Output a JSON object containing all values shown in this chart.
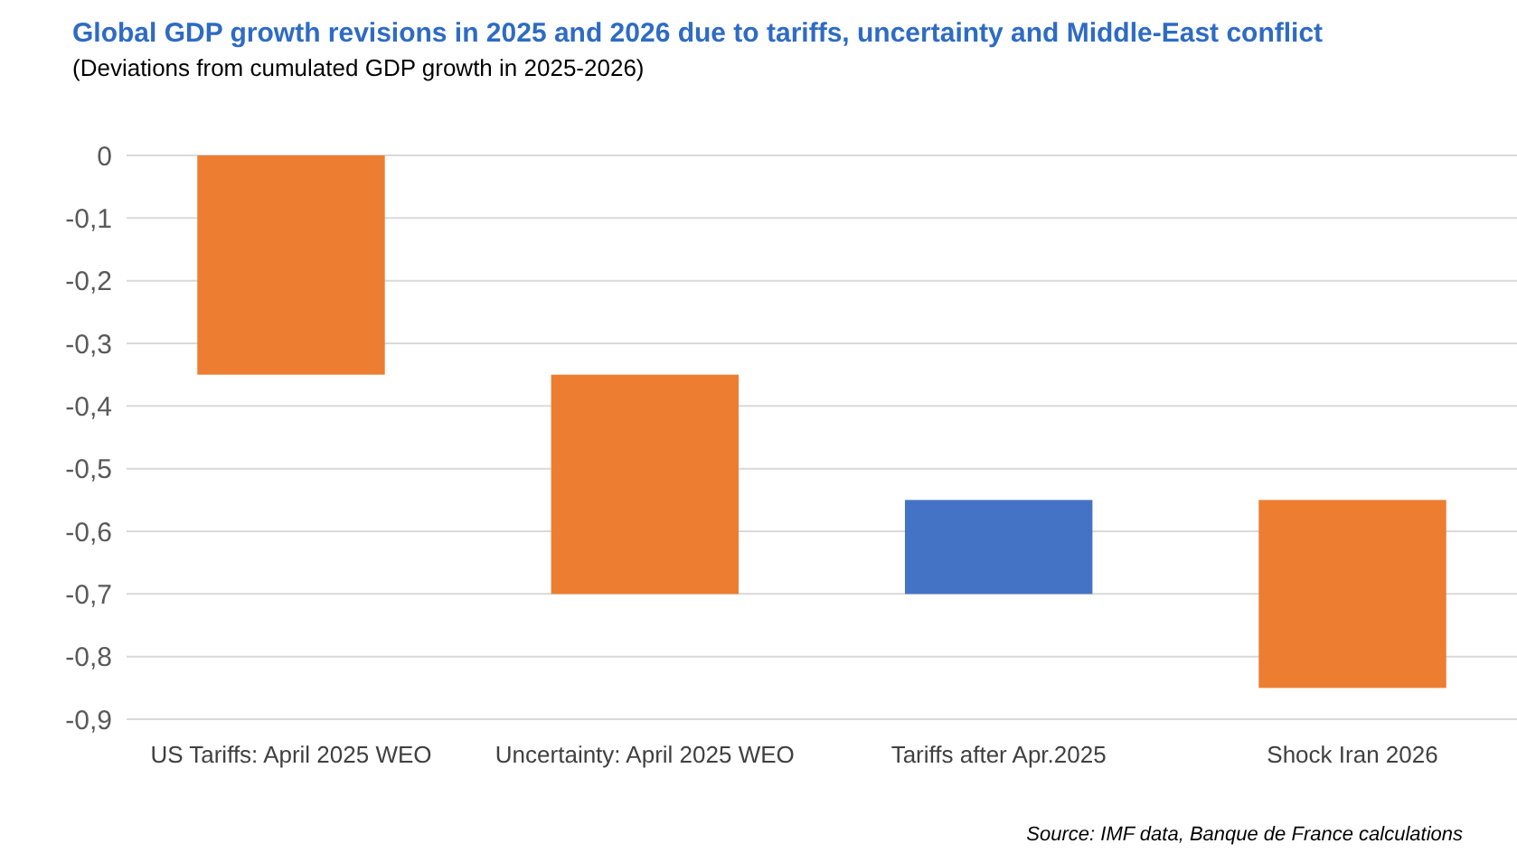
{
  "chart_data": {
    "type": "bar",
    "title": "Global GDP growth revisions in 2025 and 2026 due to tariffs, uncertainty and Middle-East conflict",
    "subtitle": "(Deviations from cumulated GDP growth in 2025-2026)",
    "categories": [
      "US Tariffs: April 2025 WEO",
      "Uncertainty: April 2025 WEO",
      "Tariffs after Apr.2025",
      "Shock Iran 2026"
    ],
    "values": [
      -0.35,
      -0.35,
      0.15,
      -0.3
    ],
    "base": [
      0,
      -0.35,
      -0.7,
      -0.55
    ],
    "colors": [
      "#ed7d31",
      "#ed7d31",
      "#4472c4",
      "#ed7d31"
    ],
    "ylim": [
      -0.9,
      0
    ],
    "yticks": [
      0,
      {
        "value": -0.1,
        "label": "-0,1"
      },
      {
        "value": -0.2,
        "label": "-0,2"
      },
      {
        "value": -0.3,
        "label": "-0,3"
      },
      {
        "value": -0.4,
        "label": "-0,4"
      },
      {
        "value": -0.5,
        "label": "-0,5"
      },
      {
        "value": -0.6,
        "label": "-0,6"
      },
      {
        "value": -0.7,
        "label": "-0,7"
      },
      {
        "value": -0.8,
        "label": "-0,8"
      },
      {
        "value": -0.9,
        "label": "-0,9"
      }
    ],
    "grid": "y",
    "annotations": [
      "Source: IMF data, Banque de France calculations"
    ]
  }
}
